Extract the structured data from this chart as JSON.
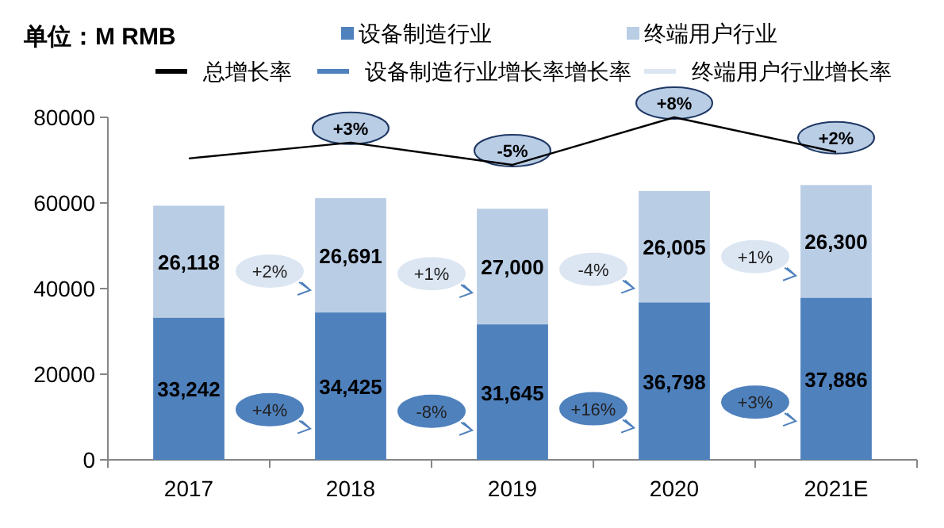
{
  "chart_data": {
    "type": "bar",
    "stacked": true,
    "ylabel": "单位：M RMB",
    "categories": [
      "2017",
      "2018",
      "2019",
      "2020",
      "2021E"
    ],
    "ylim": [
      0,
      80000
    ],
    "yticks": [
      0,
      20000,
      40000,
      60000,
      80000
    ],
    "grid": false,
    "legend": "top",
    "series": [
      {
        "name": "设备制造行业",
        "color": "#4f81bd",
        "values": [
          33242,
          34425,
          31645,
          36798,
          37886
        ],
        "value_labels": [
          "33,242",
          "34,425",
          "31,645",
          "36,798",
          "37,886"
        ]
      },
      {
        "name": "终端用户行业",
        "color": "#b9cde5",
        "values": [
          26118,
          26691,
          27000,
          26005,
          26300
        ],
        "value_labels": [
          "26,118",
          "26,691",
          "27,000",
          "26,005",
          "26,300"
        ]
      },
      {
        "name": "总增长率",
        "type": "line",
        "color": "#000000",
        "values": [
          70400,
          74100,
          68900,
          80000,
          71900
        ]
      },
      {
        "name": "设备制造行业增长率增长率",
        "type": "line",
        "color": "#4f81bd",
        "values": [
          null,
          null,
          null,
          null,
          null
        ]
      },
      {
        "name": "终端用户行业增长率",
        "type": "line",
        "color": "#dce6f2",
        "values": [
          null,
          null,
          null,
          null,
          null
        ]
      }
    ],
    "annotations": [
      {
        "text": "+3%",
        "x": "2018",
        "y": 74100
      },
      {
        "text": "-5%",
        "x": "2019",
        "y": 68900
      },
      {
        "text": "+8%",
        "x": "2020",
        "y": 80000
      },
      {
        "text": "+2%",
        "x": "2021E",
        "y": 71900
      },
      "+4%",
      "-8%",
      "+16%",
      "+3%",
      "+2%",
      "+1%",
      "-4%",
      "+1%"
    ]
  }
}
